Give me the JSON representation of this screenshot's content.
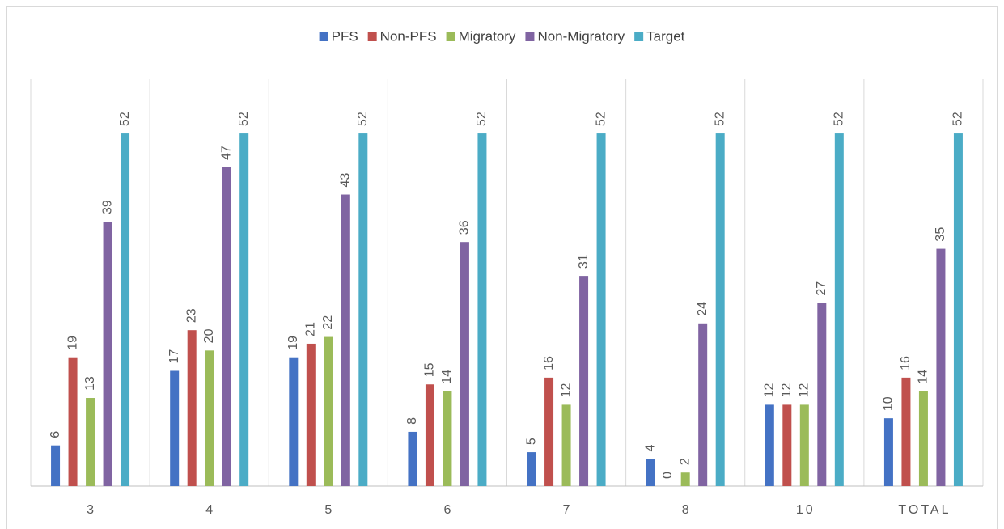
{
  "chart_data": {
    "type": "bar",
    "categories": [
      "3",
      "4",
      "5",
      "6",
      "7",
      "8",
      "10",
      "TOTAL"
    ],
    "series": [
      {
        "name": "PFS",
        "color": "#4472c4",
        "values": [
          6,
          17,
          19,
          8,
          5,
          4,
          12,
          10
        ]
      },
      {
        "name": "Non-PFS",
        "color": "#c0504d",
        "values": [
          19,
          23,
          21,
          15,
          16,
          0,
          12,
          16
        ]
      },
      {
        "name": "Migratory",
        "color": "#9bbb59",
        "values": [
          13,
          20,
          22,
          14,
          12,
          2,
          12,
          14
        ]
      },
      {
        "name": "Non-Migratory",
        "color": "#8064a2",
        "values": [
          39,
          47,
          43,
          36,
          31,
          24,
          27,
          35
        ]
      },
      {
        "name": "Target",
        "color": "#4bacc6",
        "values": [
          52,
          52,
          52,
          52,
          52,
          52,
          52,
          52
        ]
      }
    ],
    "ylim": [
      0,
      60
    ],
    "legend": "top"
  }
}
